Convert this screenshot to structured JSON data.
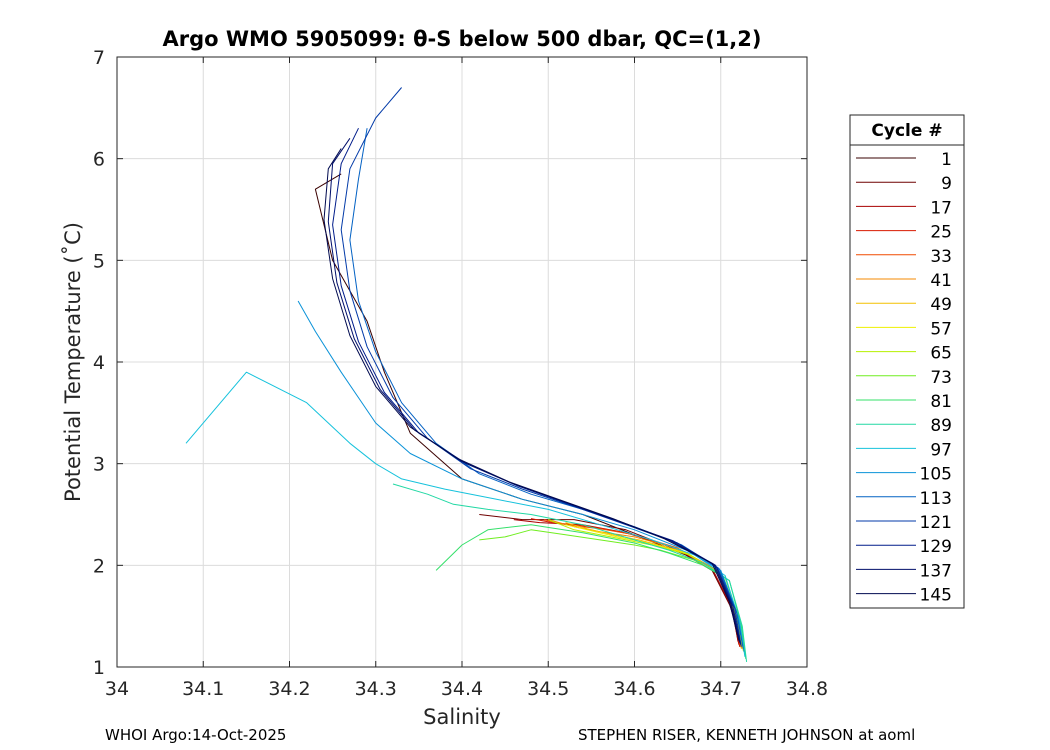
{
  "chart_data": {
    "type": "line",
    "title": "Argo WMO 5905099: θ-S below 500 dbar,  QC=(1,2)",
    "xlabel": "Salinity",
    "ylabel": "Potential Temperature (˚C)",
    "xlim": [
      34.0,
      34.8
    ],
    "ylim": [
      1,
      7
    ],
    "xticks": [
      "34",
      "34.1",
      "34.2",
      "34.3",
      "34.4",
      "34.5",
      "34.6",
      "34.7",
      "34.8"
    ],
    "yticks": [
      "1",
      "2",
      "3",
      "4",
      "5",
      "6",
      "7"
    ],
    "grid": true,
    "legend": {
      "title": "Cycle #",
      "placement": "right-outside",
      "entries": [
        {
          "label": "1",
          "color": "#3a0000"
        },
        {
          "label": "9",
          "color": "#6e0000"
        },
        {
          "label": "17",
          "color": "#a80000"
        },
        {
          "label": "25",
          "color": "#d81a00"
        },
        {
          "label": "33",
          "color": "#f04a00"
        },
        {
          "label": "41",
          "color": "#f48a00"
        },
        {
          "label": "49",
          "color": "#f4c000"
        },
        {
          "label": "57",
          "color": "#eef000"
        },
        {
          "label": "65",
          "color": "#b6f000"
        },
        {
          "label": "73",
          "color": "#70ee20"
        },
        {
          "label": "81",
          "color": "#34e06a"
        },
        {
          "label": "89",
          "color": "#22d8a4"
        },
        {
          "label": "97",
          "color": "#16c2dc"
        },
        {
          "label": "105",
          "color": "#0a92d8"
        },
        {
          "label": "113",
          "color": "#0462c4"
        },
        {
          "label": "121",
          "color": "#023aa8"
        },
        {
          "label": "129",
          "color": "#011c8a"
        },
        {
          "label": "137",
          "color": "#010e6a"
        },
        {
          "label": "145",
          "color": "#000a50"
        }
      ]
    },
    "series": [
      {
        "name": "1",
        "color": "#3a0000",
        "x": [
          34.722,
          34.718,
          34.7,
          34.66,
          34.6,
          34.54,
          34.47,
          34.4,
          34.34,
          34.31,
          34.29,
          34.25,
          34.23,
          34.26
        ],
        "y": [
          1.2,
          1.4,
          1.9,
          2.1,
          2.3,
          2.5,
          2.65,
          2.85,
          3.3,
          3.9,
          4.4,
          5.0,
          5.7,
          5.85
        ]
      },
      {
        "name": "9",
        "color": "#6e0000",
        "x": [
          34.72,
          34.714,
          34.69,
          34.65,
          34.59,
          34.53,
          34.47,
          34.42
        ],
        "y": [
          1.25,
          1.55,
          1.95,
          2.15,
          2.35,
          2.45,
          2.45,
          2.5
        ]
      },
      {
        "name": "17",
        "color": "#a80000",
        "x": [
          34.721,
          34.712,
          34.69,
          34.645,
          34.59,
          34.54,
          34.49,
          34.46
        ],
        "y": [
          1.22,
          1.6,
          1.97,
          2.18,
          2.32,
          2.4,
          2.42,
          2.45
        ]
      },
      {
        "name": "25",
        "color": "#d81a00",
        "x": [
          34.722,
          34.714,
          34.695,
          34.65,
          34.6,
          34.55,
          34.505,
          34.48
        ],
        "y": [
          1.2,
          1.58,
          1.95,
          2.16,
          2.3,
          2.38,
          2.42,
          2.46
        ]
      },
      {
        "name": "33",
        "color": "#f04a00",
        "x": [
          34.723,
          34.715,
          34.696,
          34.65,
          34.6,
          34.56,
          34.52,
          34.495
        ],
        "y": [
          1.2,
          1.55,
          1.95,
          2.17,
          2.3,
          2.36,
          2.4,
          2.45
        ]
      },
      {
        "name": "41",
        "color": "#f48a00",
        "x": [
          34.724,
          34.716,
          34.697,
          34.652,
          34.6,
          34.56,
          34.53,
          34.5
        ],
        "y": [
          1.18,
          1.55,
          1.94,
          2.16,
          2.28,
          2.33,
          2.38,
          2.45
        ]
      },
      {
        "name": "49",
        "color": "#f4c000",
        "x": [
          34.725,
          34.717,
          34.698,
          34.655,
          34.605,
          34.575,
          34.545,
          34.52
        ],
        "y": [
          1.18,
          1.52,
          1.93,
          2.14,
          2.25,
          2.3,
          2.36,
          2.42
        ]
      },
      {
        "name": "57",
        "color": "#eef000",
        "x": [
          34.726,
          34.718,
          34.7,
          34.66,
          34.61,
          34.58,
          34.55,
          34.52
        ],
        "y": [
          1.16,
          1.5,
          1.92,
          2.12,
          2.23,
          2.28,
          2.34,
          2.4
        ]
      },
      {
        "name": "65",
        "color": "#b6f000",
        "x": [
          34.727,
          34.719,
          34.702,
          34.665,
          34.62,
          34.59,
          34.56,
          34.53,
          34.5
        ],
        "y": [
          1.15,
          1.48,
          1.9,
          2.1,
          2.2,
          2.25,
          2.3,
          2.35,
          2.45
        ]
      },
      {
        "name": "73",
        "color": "#70ee20",
        "x": [
          34.728,
          34.722,
          34.705,
          34.67,
          34.63,
          34.6,
          34.56,
          34.52,
          34.48,
          34.45,
          34.42
        ],
        "y": [
          1.12,
          1.45,
          1.88,
          2.05,
          2.15,
          2.2,
          2.25,
          2.3,
          2.35,
          2.28,
          2.25
        ]
      },
      {
        "name": "81",
        "color": "#34e06a",
        "x": [
          34.729,
          34.724,
          34.71,
          34.68,
          34.64,
          34.6,
          34.54,
          34.48,
          34.43,
          34.4,
          34.37
        ],
        "y": [
          1.08,
          1.4,
          1.85,
          2.0,
          2.12,
          2.22,
          2.32,
          2.4,
          2.35,
          2.2,
          1.95
        ]
      },
      {
        "name": "89",
        "color": "#22d8a4",
        "x": [
          34.73,
          34.725,
          34.71,
          34.68,
          34.64,
          34.6,
          34.54,
          34.48,
          34.43,
          34.39,
          34.36,
          34.32
        ],
        "y": [
          1.05,
          1.4,
          1.85,
          2.02,
          2.15,
          2.25,
          2.4,
          2.5,
          2.55,
          2.6,
          2.7,
          2.8
        ]
      },
      {
        "name": "97",
        "color": "#16c2dc",
        "x": [
          34.728,
          34.722,
          34.705,
          34.67,
          34.62,
          34.56,
          34.5,
          34.44,
          34.38,
          34.33,
          34.3,
          34.27,
          34.22,
          34.15,
          34.08
        ],
        "y": [
          1.1,
          1.45,
          1.9,
          2.1,
          2.25,
          2.4,
          2.55,
          2.65,
          2.75,
          2.85,
          3.0,
          3.2,
          3.6,
          3.9,
          3.2
        ]
      },
      {
        "name": "105",
        "color": "#0a92d8",
        "x": [
          34.727,
          34.72,
          34.7,
          34.66,
          34.6,
          34.54,
          34.47,
          34.4,
          34.34,
          34.3,
          34.26,
          34.23,
          34.21
        ],
        "y": [
          1.15,
          1.5,
          1.95,
          2.15,
          2.35,
          2.5,
          2.65,
          2.85,
          3.1,
          3.4,
          3.9,
          4.3,
          4.6
        ]
      },
      {
        "name": "113",
        "color": "#0462c4",
        "x": [
          34.726,
          34.718,
          34.698,
          34.655,
          34.6,
          34.54,
          34.48,
          34.42,
          34.37,
          34.33,
          34.3,
          34.28,
          34.27,
          34.28,
          34.29
        ],
        "y": [
          1.18,
          1.55,
          1.97,
          2.2,
          2.38,
          2.55,
          2.7,
          2.9,
          3.2,
          3.6,
          4.1,
          4.6,
          5.2,
          5.8,
          6.3
        ]
      },
      {
        "name": "121",
        "color": "#023aa8",
        "x": [
          34.724,
          34.716,
          34.696,
          34.65,
          34.59,
          34.53,
          34.47,
          34.41,
          34.36,
          34.32,
          34.29,
          34.27,
          34.26,
          34.27,
          34.3,
          34.33
        ],
        "y": [
          1.2,
          1.58,
          1.98,
          2.22,
          2.4,
          2.58,
          2.75,
          2.95,
          3.25,
          3.65,
          4.15,
          4.7,
          5.3,
          5.9,
          6.4,
          6.7
        ]
      },
      {
        "name": "129",
        "color": "#011c8a",
        "x": [
          34.723,
          34.714,
          34.694,
          34.645,
          34.585,
          34.525,
          34.465,
          34.405,
          34.35,
          34.31,
          34.28,
          34.26,
          34.25,
          34.26,
          34.28
        ],
        "y": [
          1.22,
          1.6,
          2.0,
          2.24,
          2.42,
          2.6,
          2.78,
          3.0,
          3.3,
          3.7,
          4.2,
          4.75,
          5.35,
          5.95,
          6.3
        ]
      },
      {
        "name": "137",
        "color": "#010e6a",
        "x": [
          34.722,
          34.712,
          34.692,
          34.64,
          34.58,
          34.52,
          34.46,
          34.4,
          34.345,
          34.305,
          34.275,
          34.255,
          34.245,
          34.25,
          34.27
        ],
        "y": [
          1.24,
          1.62,
          2.01,
          2.25,
          2.44,
          2.62,
          2.8,
          3.02,
          3.33,
          3.73,
          4.23,
          4.78,
          5.38,
          5.95,
          6.2
        ]
      },
      {
        "name": "145",
        "color": "#000a50",
        "x": [
          34.721,
          34.71,
          34.69,
          34.635,
          34.575,
          34.515,
          34.455,
          34.395,
          34.34,
          34.3,
          34.27,
          34.25,
          34.24,
          34.245,
          34.26
        ],
        "y": [
          1.26,
          1.64,
          2.02,
          2.26,
          2.46,
          2.64,
          2.82,
          3.05,
          3.36,
          3.76,
          4.26,
          4.82,
          5.4,
          5.9,
          6.1
        ]
      }
    ]
  },
  "footer": {
    "left": "WHOI Argo:14-Oct-2025",
    "right": "STEPHEN RISER, KENNETH JOHNSON at aoml"
  }
}
